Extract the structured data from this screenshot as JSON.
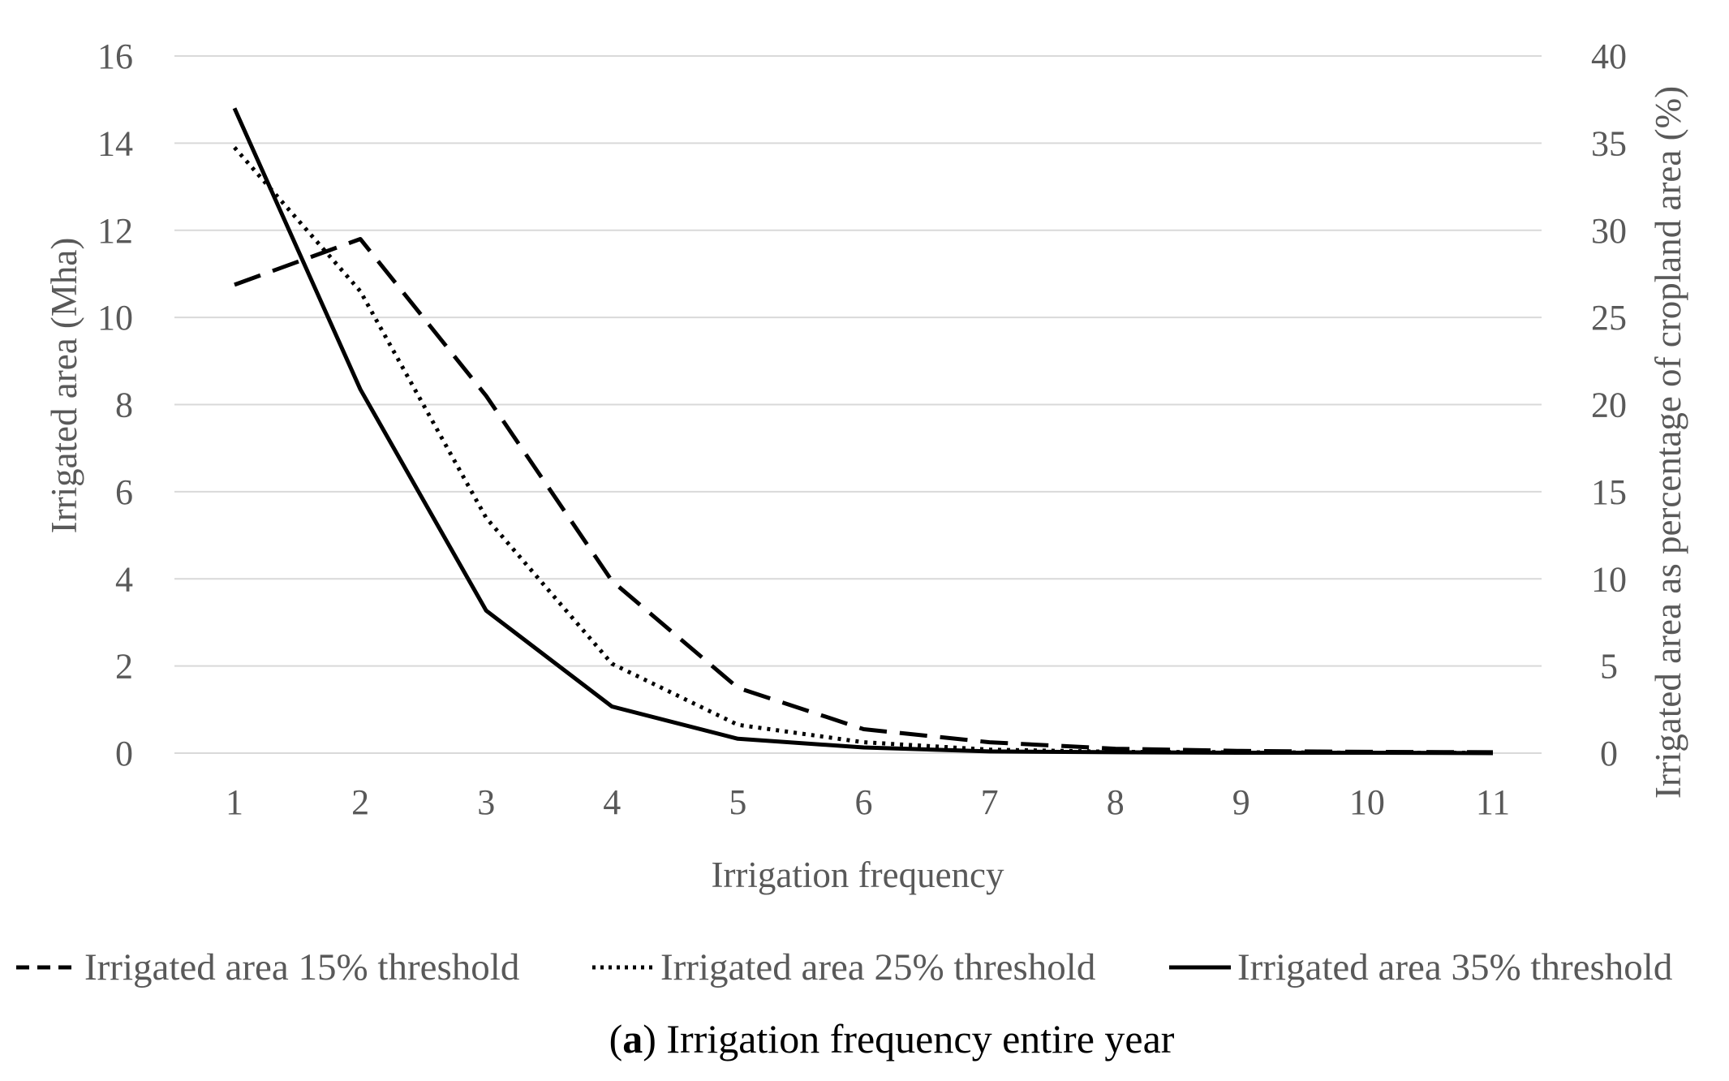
{
  "chart_data": {
    "type": "line",
    "title": "",
    "caption": {
      "open": "(",
      "label": "a",
      "text": ") Irrigation frequency entire year"
    },
    "xlabel": "Irrigation frequency",
    "ylabel": "Irrigated area (Mha)",
    "y2label": "Irrigated area as percentage of cropland area (%)",
    "categories": [
      "1",
      "2",
      "3",
      "4",
      "5",
      "6",
      "7",
      "8",
      "9",
      "10",
      "11"
    ],
    "ylim": [
      0,
      16
    ],
    "yticks": [
      "0",
      "2",
      "4",
      "6",
      "8",
      "10",
      "12",
      "14",
      "16"
    ],
    "y2lim": [
      0,
      40
    ],
    "y2ticks": [
      "0",
      "5",
      "10",
      "15",
      "20",
      "25",
      "30",
      "35",
      "40"
    ],
    "grid": true,
    "legend_position": "bottom",
    "series": [
      {
        "name": "Irrigated area 15% threshold",
        "style": "dashed",
        "color": "#000000",
        "values": [
          10.75,
          11.8,
          8.2,
          3.95,
          1.5,
          0.55,
          0.25,
          0.1,
          0.05,
          0.03,
          0.02
        ]
      },
      {
        "name": "Irrigated area 25% threshold",
        "style": "dotted",
        "color": "#000000",
        "values": [
          13.9,
          10.6,
          5.4,
          2.05,
          0.65,
          0.25,
          0.08,
          0.03,
          0.02,
          0.01,
          0.01
        ]
      },
      {
        "name": "Irrigated area 35% threshold",
        "style": "solid",
        "color": "#000000",
        "values": [
          14.8,
          8.35,
          3.27,
          1.07,
          0.33,
          0.13,
          0.04,
          0.02,
          0.01,
          0.01,
          0.0
        ]
      }
    ]
  }
}
